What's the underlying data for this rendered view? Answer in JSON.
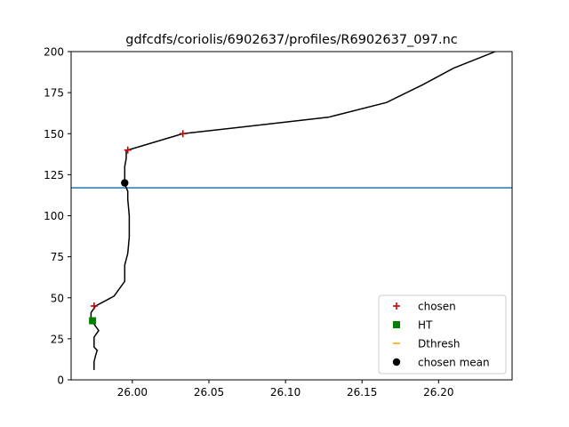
{
  "chart_data": {
    "type": "line",
    "title": "gdfcdfs/coriolis/6902637/profiles/R6902637_097.nc",
    "xlabel": "",
    "ylabel": "",
    "xlim": [
      25.96,
      26.248
    ],
    "ylim": [
      0,
      200
    ],
    "xticks": [
      26.0,
      26.05,
      26.1,
      26.15,
      26.2
    ],
    "xtick_labels": [
      "26.00",
      "26.05",
      "26.10",
      "26.15",
      "26.20"
    ],
    "yticks": [
      0,
      25,
      50,
      75,
      100,
      125,
      150,
      175,
      200
    ],
    "ytick_labels": [
      "0",
      "25",
      "50",
      "75",
      "100",
      "125",
      "150",
      "175",
      "200"
    ],
    "grid": false,
    "legend_position": "lower-right",
    "profile": {
      "color": "#000000",
      "x": [
        25.975,
        25.975,
        25.976,
        25.977,
        25.975,
        25.975,
        25.978,
        25.975,
        25.973,
        25.973,
        25.976,
        25.988,
        25.995,
        25.995,
        25.997,
        25.998,
        25.998,
        25.997,
        25.997,
        25.996,
        25.995,
        25.995,
        25.996,
        25.996,
        25.996,
        25.995,
        25.997,
        26.033,
        26.128,
        26.166,
        26.19,
        26.21,
        26.237,
        26.245
      ],
      "y": [
        6,
        11,
        15,
        18,
        20,
        26,
        30,
        34,
        36,
        41,
        45,
        51,
        60,
        70,
        77,
        87,
        100,
        110,
        115,
        117,
        120,
        130,
        135,
        138,
        140,
        140,
        140,
        150,
        160,
        169,
        180,
        190,
        200,
        204
      ]
    },
    "series": [
      {
        "name": "chosen",
        "marker": "plus",
        "color": "#cc0000",
        "x": [
          25.997,
          26.033,
          25.975
        ],
        "y": [
          140,
          150,
          45
        ]
      },
      {
        "name": "HT",
        "marker": "square",
        "color": "#008000",
        "x": [
          25.974
        ],
        "y": [
          36
        ]
      },
      {
        "name": "Dthresh",
        "marker": "hline",
        "color": "#ffa500",
        "x": [],
        "y": []
      },
      {
        "name": "chosen mean",
        "marker": "circle",
        "color": "#000000",
        "x": [
          25.995
        ],
        "y": [
          120
        ]
      }
    ],
    "hline": {
      "y": 117,
      "color": "#1f77b4"
    }
  }
}
